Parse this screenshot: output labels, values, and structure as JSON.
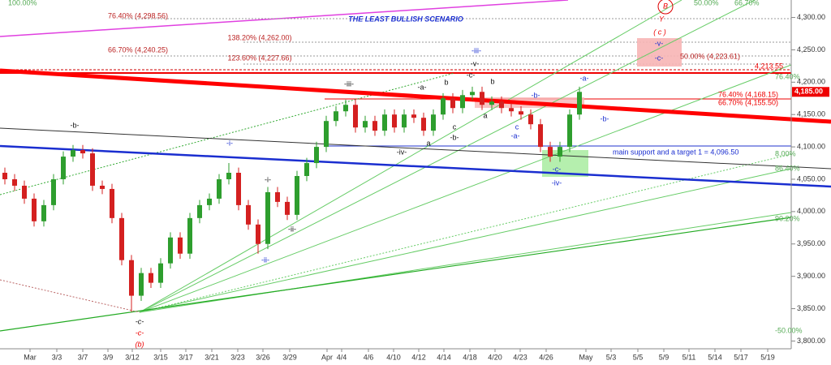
{
  "chart_data": {
    "type": "candlestick",
    "title": "THE LEAST BULLISH SCENARIO",
    "categories": [
      "Mar",
      "3/3",
      "3/7",
      "3/9",
      "3/12",
      "3/15",
      "3/17",
      "3/21",
      "3/23",
      "3/26",
      "3/29",
      "Apr",
      "4/4",
      "4/6",
      "4/10",
      "4/12",
      "4/14",
      "4/18",
      "4/20",
      "4/23",
      "4/26",
      "May",
      "5/3",
      "5/5",
      "5/9",
      "5/11",
      "5/14",
      "5/17",
      "5/19"
    ],
    "open": [
      4060,
      4050,
      4040,
      4020,
      3985,
      4010,
      4050,
      4085,
      4095,
      4090,
      4040,
      4035,
      3990,
      3925,
      3870,
      3905,
      3890,
      3920,
      3960,
      3935,
      3990,
      4010,
      4020,
      4050,
      4060,
      4010,
      3980,
      3950,
      4030,
      4015,
      3995,
      4055,
      4075,
      4100,
      4140,
      4155,
      4165,
      4130,
      4140,
      4125,
      4150,
      4130,
      4150,
      4145,
      4125,
      4150,
      4175,
      4160,
      4180,
      4185,
      4165,
      4170,
      4160,
      4155,
      4150,
      4135,
      4100,
      4085,
      4100,
      4150
    ],
    "high": [
      4068,
      4058,
      4048,
      4028,
      4018,
      4058,
      4093,
      4103,
      4103,
      4098,
      4048,
      4043,
      3998,
      3933,
      3913,
      3913,
      3928,
      3968,
      3968,
      3998,
      4018,
      4028,
      4058,
      4075,
      4068,
      4018,
      3988,
      4038,
      4038,
      4023,
      4063,
      4083,
      4108,
      4148,
      4163,
      4173,
      4173,
      4148,
      4148,
      4158,
      4158,
      4158,
      4158,
      4153,
      4158,
      4183,
      4183,
      4188,
      4193,
      4193,
      4178,
      4178,
      4168,
      4163,
      4158,
      4143,
      4108,
      4108,
      4158,
      4193
    ],
    "low": [
      4042,
      4032,
      4012,
      3977,
      3977,
      4002,
      4042,
      4077,
      4082,
      4032,
      4027,
      3982,
      3917,
      3845,
      3862,
      3882,
      3882,
      3912,
      3927,
      3927,
      3982,
      4002,
      4012,
      4042,
      4002,
      3972,
      3935,
      3942,
      4007,
      3987,
      3987,
      4047,
      4067,
      4092,
      4132,
      4147,
      4122,
      4122,
      4117,
      4117,
      4122,
      4122,
      4137,
      4117,
      4117,
      4142,
      4152,
      4152,
      4172,
      4157,
      4157,
      4152,
      4147,
      4142,
      4127,
      4092,
      4077,
      4077,
      4092,
      4142
    ],
    "close": [
      4050,
      4040,
      4020,
      3985,
      4010,
      4050,
      4085,
      4095,
      4090,
      4040,
      4035,
      3990,
      3925,
      3870,
      3905,
      3890,
      3920,
      3960,
      3935,
      3990,
      4010,
      4020,
      4050,
      4060,
      4010,
      3980,
      3950,
      4030,
      4015,
      3995,
      4055,
      4075,
      4100,
      4140,
      4155,
      4165,
      4130,
      4140,
      4125,
      4150,
      4130,
      4150,
      4145,
      4125,
      4150,
      4175,
      4160,
      4180,
      4185,
      4165,
      4170,
      4160,
      4155,
      4150,
      4135,
      4100,
      4085,
      4100,
      4150,
      4185
    ],
    "up_color": "#2e9e2e",
    "down_color": "#d42020",
    "ylim": [
      3788,
      4327
    ],
    "yticks": [
      {
        "value": 3800,
        "label": "3,800.00"
      },
      {
        "value": 3850,
        "label": "3,850.00"
      },
      {
        "value": 3900,
        "label": "3,900.00"
      },
      {
        "value": 3950,
        "label": "3,950.00"
      },
      {
        "value": 4000,
        "label": "4,000.00"
      },
      {
        "value": 4050,
        "label": "4,050.00"
      },
      {
        "value": 4100,
        "label": "4,100.00"
      },
      {
        "value": 4150,
        "label": "4,150.00"
      },
      {
        "value": 4200,
        "label": "4,200.00"
      },
      {
        "value": 4250,
        "label": "4,250.00"
      },
      {
        "value": 4300,
        "label": "4,300.00"
      }
    ],
    "last_price": {
      "value": 4185,
      "label": "4,185.00"
    },
    "annotations": [
      "76.40% (4,298.56)",
      "138.20% (4,262.00)",
      "66.70% (4,240.25)",
      "123.60% (4,227.66)",
      "-iii-",
      "-v-",
      "-a-",
      "b",
      "-c-",
      "b",
      "-iii-",
      "-b-",
      "-a-",
      "a",
      "c",
      "-b-",
      "a",
      "-iv-",
      "c",
      "-a-",
      "-b-",
      "-i-",
      "-b-",
      "-i-",
      "-ii-",
      "-ii-",
      "-c-",
      "-c-",
      "(b)",
      "-c-",
      "-iv-",
      "main support and a target 1 = 4,096.50",
      "76.40% (4,168.15)",
      "66.70% (4,155.50)",
      "50.00% (4,223.61)",
      "4,213.55",
      "-v-",
      "-c-",
      "B",
      "Y",
      "( c )",
      "76.40%",
      "8.00%",
      "86.40%",
      "90.20%",
      "-50.00%",
      "100.00%",
      "50.00%",
      "66.70%"
    ]
  }
}
